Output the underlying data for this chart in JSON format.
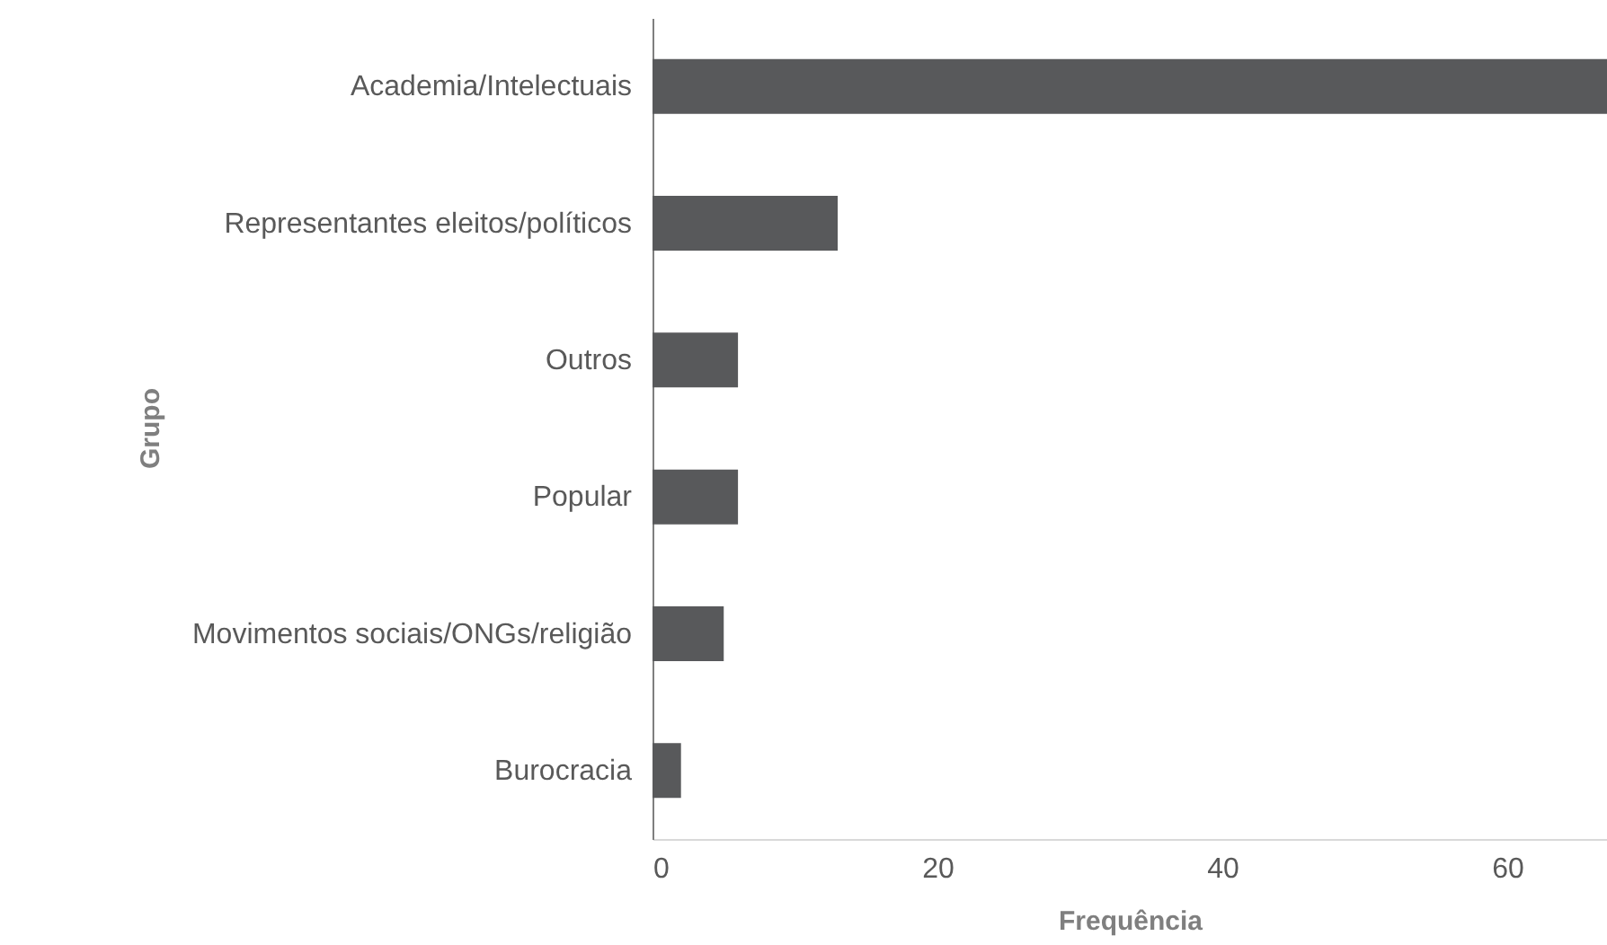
{
  "chart_data": {
    "type": "bar",
    "orientation": "horizontal",
    "xlabel": "Frequência",
    "ylabel": "Grupo",
    "categories": [
      "Academia/Intelectuais",
      "Representantes eleitos/políticos",
      "Outros",
      "Popular",
      "Movimentos sociais/ONGs/religião",
      "Burocracia"
    ],
    "values": [
      67,
      13,
      6,
      6,
      5,
      2
    ],
    "color": "#58595b",
    "xlim": [
      0,
      67
    ],
    "xticks": [
      0,
      20,
      40,
      60
    ],
    "grid": false
  }
}
